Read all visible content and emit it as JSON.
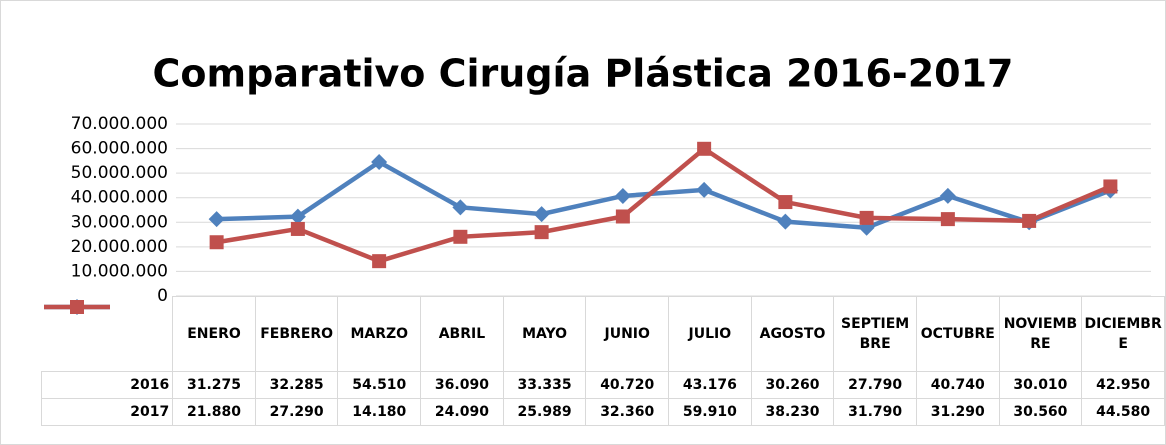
{
  "chart_data": {
    "type": "line",
    "title": "Comparativo Cirugía Plástica 2016-2017",
    "categories": [
      "ENERO",
      "FEBRERO",
      "MARZO",
      "ABRIL",
      "MAYO",
      "JUNIO",
      "JULIO",
      "AGOSTO",
      "SEPTIEMBRE",
      "OCTUBRE",
      "NOVIEMBRE",
      "DICIEMBRE"
    ],
    "series": [
      {
        "name": "2016",
        "color": "#4f81bd",
        "marker": "diamond",
        "values": [
          31275000,
          32285000,
          54510000,
          36090000,
          33335000,
          40720000,
          43176000,
          30260000,
          27790000,
          40740000,
          30010000,
          42950000
        ],
        "value_labels": [
          "31.275",
          "32.285",
          "54.510",
          "36.090",
          "33.335",
          "40.720",
          "43.176",
          "30.260",
          "27.790",
          "40.740",
          "30.010",
          "42.950"
        ]
      },
      {
        "name": "2017",
        "color": "#c0504d",
        "marker": "square",
        "values": [
          21880000,
          27290000,
          14180000,
          24090000,
          25989000,
          32360000,
          59910000,
          38230000,
          31790000,
          31290000,
          30560000,
          44580000
        ],
        "value_labels": [
          "21.880",
          "27.290",
          "14.180",
          "24.090",
          "25.989",
          "32.360",
          "59.910",
          "38.230",
          "31.790",
          "31.290",
          "30.560",
          "44.580"
        ]
      }
    ],
    "ylim": [
      0,
      70000000
    ],
    "yticks": [
      0,
      {
        "value": 10000000,
        "label": "10.000.000"
      },
      {
        "value": 20000000,
        "label": "20.000.000"
      },
      {
        "value": 30000000,
        "label": "30.000.000"
      },
      {
        "value": 40000000,
        "label": "40.000.000"
      },
      {
        "value": 50000000,
        "label": "50.000.000"
      },
      {
        "value": 60000000,
        "label": "60.000.000"
      },
      {
        "value": 70000000,
        "label": "70.000.000"
      }
    ],
    "grid": true,
    "data_table": true
  }
}
